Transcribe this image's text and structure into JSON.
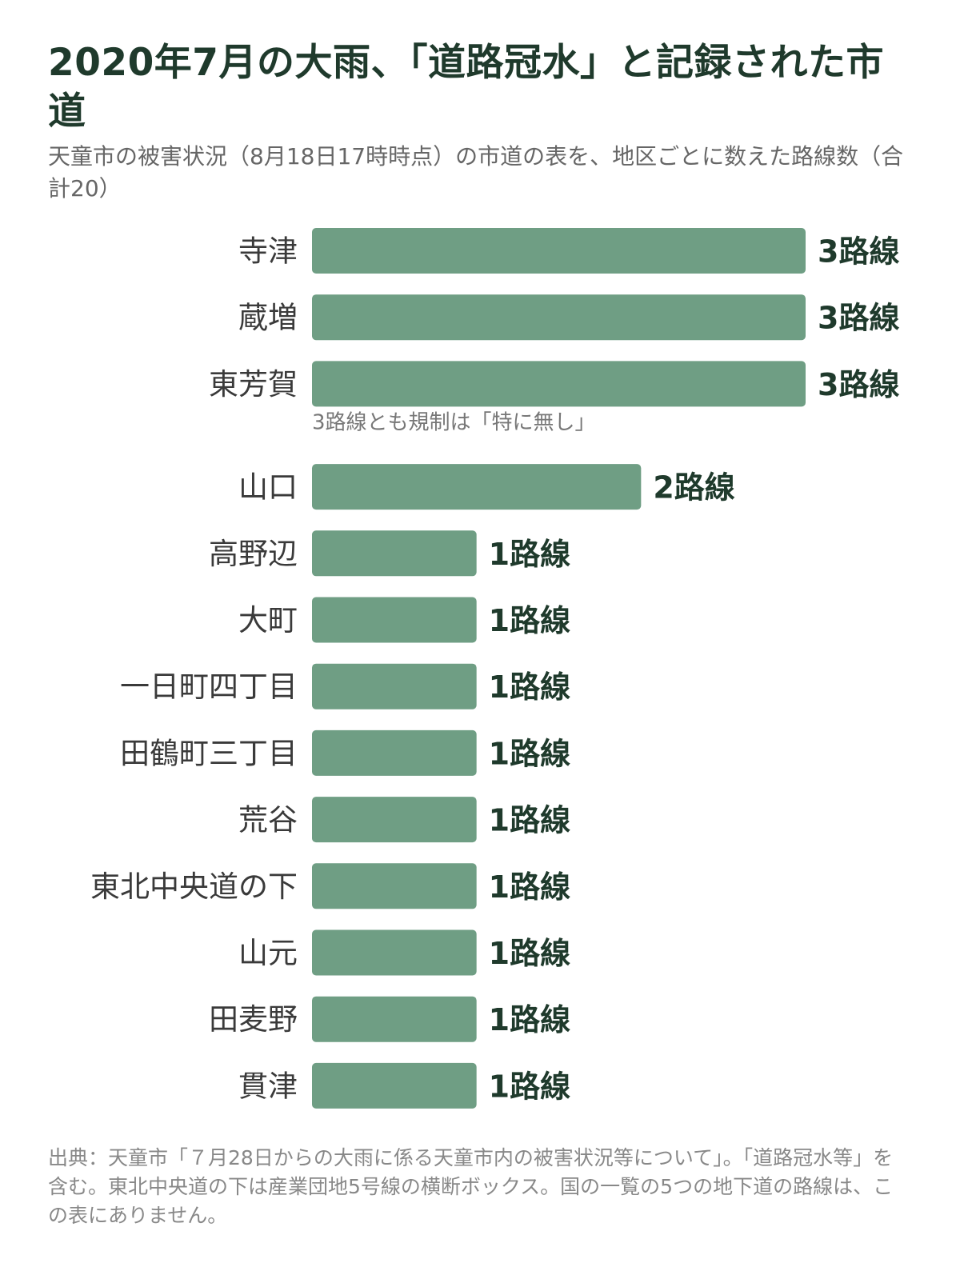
{
  "header": {
    "title": "2020年7月の大雨、「道路冠水」と記録された市道",
    "subtitle": "天童市の被害状況（8月18日17時時点）の市道の表を、地区ごとに数えた路線数（合計20）"
  },
  "chart_data": {
    "type": "bar",
    "orientation": "horizontal",
    "categories": [
      "寺津",
      "蔵増",
      "東芳賀",
      "山口",
      "高野辺",
      "大町",
      "一日町四丁目",
      "田鶴町三丁目",
      "荒谷",
      "東北中央道の下",
      "山元",
      "田麦野",
      "貫津"
    ],
    "values": [
      3,
      3,
      3,
      2,
      1,
      1,
      1,
      1,
      1,
      1,
      1,
      1,
      1
    ],
    "value_labels": [
      "3路線",
      "3路線",
      "3路線",
      "2路線",
      "1路線",
      "1路線",
      "1路線",
      "1路線",
      "1路線",
      "1路線",
      "1路線",
      "1路線",
      "1路線"
    ],
    "annotation": {
      "after_category": "東芳賀",
      "text": "3路線とも規制は「特に無し」"
    },
    "xlim": [
      0,
      3
    ],
    "bar_color": "#6f9e84",
    "grid": false
  },
  "footer": {
    "source": "出典：天童市「７月28日からの大雨に係る天童市内の被害状況等について」。「道路冠水等」を含む。東北中央道の下は産業団地5号線の横断ボックス。国の一覧の5つの地下道の路線は、この表にありません。"
  }
}
